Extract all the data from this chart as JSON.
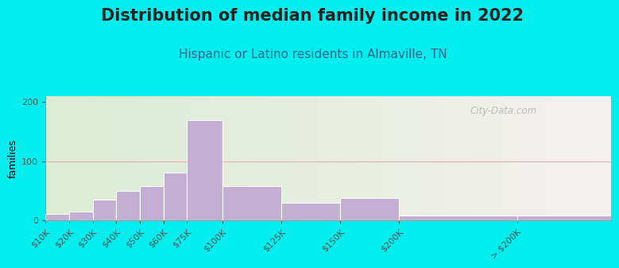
{
  "title": "Distribution of median family income in 2022",
  "subtitle": "Hispanic or Latino residents in Almaville, TN",
  "ylabel": "families",
  "bar_labels": [
    "$10K",
    "$20K",
    "$30K",
    "$40K",
    "$50K",
    "$60K",
    "$75K",
    "$100K",
    "$125K",
    "$150K",
    "$200K",
    "> $200K"
  ],
  "bin_edges": [
    0,
    10,
    20,
    30,
    40,
    50,
    60,
    75,
    100,
    125,
    150,
    200,
    240
  ],
  "values": [
    10,
    15,
    35,
    50,
    58,
    80,
    170,
    58,
    30,
    38,
    8,
    8
  ],
  "bar_color": "#c4aed4",
  "bar_edgecolor": "#ffffff",
  "background_color": "#00eeee",
  "plot_bg_left": "#daecd2",
  "plot_bg_right": "#f5f0f0",
  "grid_color": "#ffaaaa",
  "title_fontsize": 15,
  "subtitle_fontsize": 11,
  "ylabel_fontsize": 9,
  "tick_fontsize": 8,
  "ylim": [
    0,
    210
  ],
  "yticks": [
    0,
    100,
    200
  ],
  "watermark": "City-Data.com"
}
